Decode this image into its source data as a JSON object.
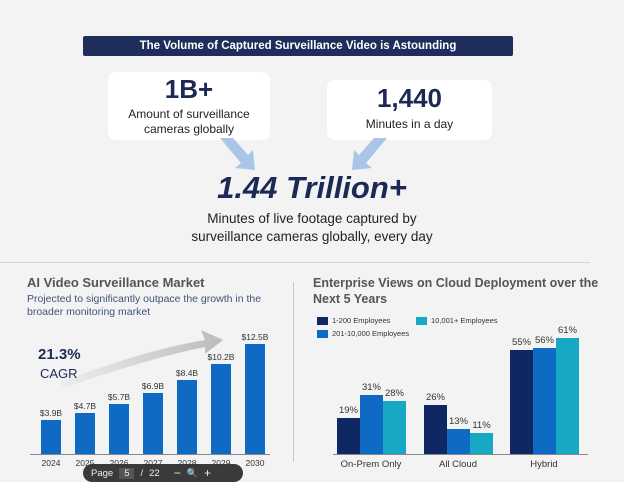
{
  "banner": "The Volume of Captured Surveillance Video is Astounding",
  "stat1": {
    "value": "1B+",
    "label": "Amount of surveillance cameras globally"
  },
  "stat2": {
    "value": "1,440",
    "label": "Minutes in a day"
  },
  "result": {
    "value": "1.44 Trillion+",
    "label1": "Minutes of live footage captured by",
    "label2": "surveillance cameras globally, every day"
  },
  "chart_data": [
    {
      "type": "bar",
      "title": "AI Video Surveillance Market",
      "subtitle": "Projected to significantly outpace the growth in the broader monitoring market",
      "annotation": {
        "value": "21.3%",
        "label": "CAGR"
      },
      "categories": [
        "2024",
        "2025",
        "2026",
        "2027",
        "2028",
        "2029",
        "2030"
      ],
      "values": [
        3.9,
        4.7,
        5.7,
        6.9,
        8.4,
        10.2,
        12.5
      ],
      "data_labels": [
        "$3.9B",
        "$4.7B",
        "$5.7B",
        "$6.9B",
        "$8.4B",
        "$10.2B",
        "$12.5B"
      ],
      "color": "#0f6ac4"
    },
    {
      "type": "bar",
      "title": "Enterprise Views on Cloud Deployment over the Next 5 Years",
      "categories": [
        "On-Prem Only",
        "All Cloud",
        "Hybrid"
      ],
      "legend": "top-left",
      "series": [
        {
          "name": "1-200 Employees",
          "values": [
            19,
            26,
            55
          ],
          "color": "#0f2763"
        },
        {
          "name": "201-10,000 Employees",
          "values": [
            31,
            13,
            56
          ],
          "color": "#0f6ac4"
        },
        {
          "name": "10,001+ Employees",
          "values": [
            28,
            11,
            61
          ],
          "color": "#17a9c4"
        }
      ]
    }
  ],
  "pager": {
    "label": "Page",
    "current": "5",
    "sep": "/",
    "total": "22",
    "zoom_out": "−",
    "zoom": "🔍",
    "zoom_in": "+"
  }
}
